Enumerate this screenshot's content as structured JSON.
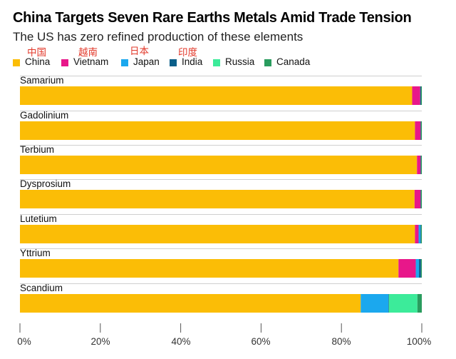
{
  "chart_data": {
    "type": "bar",
    "orientation": "horizontal",
    "stacked": true,
    "title": "China Targets Seven Rare Earths Metals Amid Trade Tension",
    "subtitle": "The US has zero refined production of these elements",
    "categories": [
      "Samarium",
      "Gadolinium",
      "Terbium",
      "Dysprosium",
      "Lutetium",
      "Yttrium",
      "Scandium"
    ],
    "series": [
      {
        "name": "China",
        "note": "中国",
        "color": "#fbbd06",
        "values": [
          97.6,
          98.3,
          98.8,
          98.2,
          98.3,
          94.2,
          84.8
        ]
      },
      {
        "name": "Vietnam",
        "note": "越南",
        "color": "#e8178a",
        "values": [
          2.0,
          1.4,
          0.9,
          1.5,
          0.9,
          4.3,
          0.0
        ]
      },
      {
        "name": "Japan",
        "note": "日本",
        "color": "#1ba8ee",
        "values": [
          0.0,
          0.0,
          0.0,
          0.0,
          0.5,
          0.8,
          6.9
        ]
      },
      {
        "name": "India",
        "note": "印度",
        "color": "#0a5f8a",
        "values": [
          0.2,
          0.1,
          0.1,
          0.1,
          0.1,
          0.5,
          0.1
        ]
      },
      {
        "name": "Russia",
        "color": "#3ceb9a",
        "values": [
          0.0,
          0.0,
          0.0,
          0.0,
          0.0,
          0.0,
          7.1
        ]
      },
      {
        "name": "Canada",
        "color": "#2a9c5e",
        "values": [
          0.1,
          0.1,
          0.1,
          0.1,
          0.1,
          0.1,
          1.1
        ]
      }
    ],
    "xlim": [
      0,
      100
    ],
    "xticks": [
      0,
      20,
      40,
      60,
      80,
      100
    ],
    "xtick_labels": [
      "0%",
      "20%",
      "40%",
      "60%",
      "80%",
      "100%"
    ],
    "legend_position": "top-left",
    "grid": false
  }
}
